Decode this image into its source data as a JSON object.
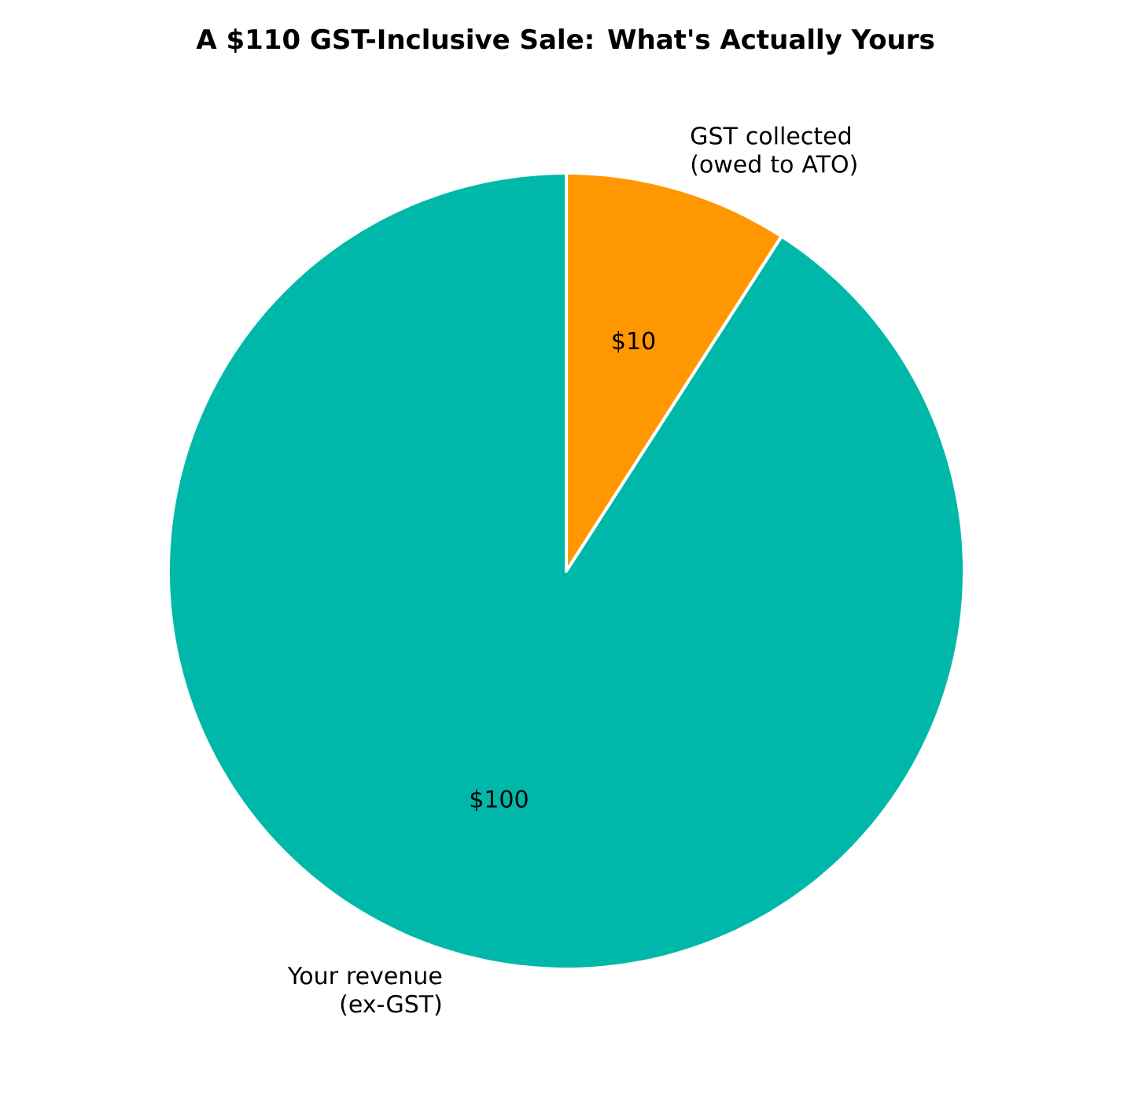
{
  "chart_data": {
    "type": "pie",
    "title": "A $110 GST-Inclusive Sale: What's Actually Yours",
    "categories": [
      "Your revenue (ex-GST)",
      "GST collected (owed to ATO)"
    ],
    "values": [
      100,
      10
    ],
    "colors": [
      "#00b8a9",
      "#ff9800"
    ],
    "value_labels": [
      "$100",
      "$10"
    ]
  }
}
